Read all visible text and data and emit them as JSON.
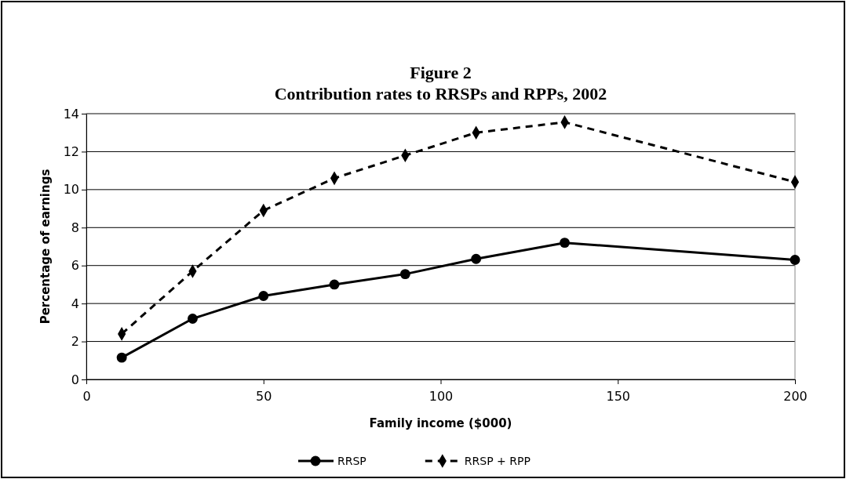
{
  "chart_data": {
    "type": "line",
    "title": "Figure 2",
    "subtitle": "Contribution rates to RRSPs and RPPs, 2002",
    "xlabel": "Family income ($000)",
    "ylabel": "Percentage of earnings",
    "xlim": [
      0,
      200
    ],
    "xticks": [
      0,
      50,
      100,
      150,
      200
    ],
    "ylim": [
      0,
      14
    ],
    "yticks": [
      0,
      2,
      4,
      6,
      8,
      10,
      12,
      14
    ],
    "grid": "y",
    "legend": "bottom",
    "series": [
      {
        "name": "RRSP",
        "color": "#000000",
        "marker": "circle",
        "line_style": "solid",
        "x": [
          10,
          30,
          50,
          70,
          90,
          110,
          135,
          200
        ],
        "values": [
          1.15,
          3.2,
          4.4,
          5.0,
          5.55,
          6.35,
          7.2,
          6.3
        ]
      },
      {
        "name": "RRSP + RPP",
        "color": "#000000",
        "marker": "diamond",
        "line_style": "dashed",
        "x": [
          10,
          30,
          50,
          70,
          90,
          110,
          135,
          200
        ],
        "values": [
          2.4,
          5.7,
          8.9,
          10.6,
          11.8,
          13.0,
          13.55,
          10.4
        ]
      }
    ]
  }
}
